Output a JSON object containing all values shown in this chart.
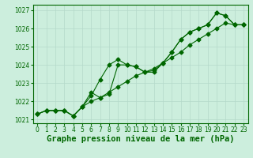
{
  "xlabel": "Graphe pression niveau de la mer (hPa)",
  "background_color": "#cceedd",
  "grid_color": "#b5d9ca",
  "line_color": "#006600",
  "x": [
    0,
    1,
    2,
    3,
    4,
    5,
    6,
    7,
    8,
    9,
    10,
    11,
    12,
    13,
    14,
    15,
    16,
    17,
    18,
    19,
    20,
    21,
    22,
    23
  ],
  "line1": [
    1021.3,
    1021.5,
    1021.5,
    1021.5,
    1021.2,
    1021.7,
    1022.0,
    1022.2,
    1022.5,
    1022.8,
    1023.1,
    1023.4,
    1023.6,
    1023.8,
    1024.1,
    1024.4,
    1024.7,
    1025.1,
    1025.4,
    1025.7,
    1026.0,
    1026.3,
    1026.2,
    1026.2
  ],
  "line2": [
    1021.3,
    1021.5,
    1021.5,
    1021.5,
    1021.2,
    1021.7,
    1022.3,
    1023.2,
    1024.0,
    1024.3,
    1024.0,
    1023.9,
    1023.6,
    1023.7,
    1024.1,
    1024.7,
    1025.4,
    1025.8,
    1026.0,
    1026.2,
    1026.85,
    1026.7,
    1026.2,
    1026.2
  ],
  "line3": [
    1021.3,
    1021.5,
    1021.5,
    1021.5,
    1021.2,
    1021.7,
    1022.5,
    1022.2,
    1022.4,
    1024.0,
    1024.0,
    1023.9,
    1023.6,
    1023.6,
    1024.1,
    1024.7,
    1025.4,
    1025.8,
    1026.0,
    1026.2,
    1026.85,
    1026.7,
    1026.2,
    1026.2
  ],
  "ylim": [
    1020.8,
    1027.3
  ],
  "yticks": [
    1021,
    1022,
    1023,
    1024,
    1025,
    1026,
    1027
  ],
  "xticks": [
    0,
    1,
    2,
    3,
    4,
    5,
    6,
    7,
    8,
    9,
    10,
    11,
    12,
    13,
    14,
    15,
    16,
    17,
    18,
    19,
    20,
    21,
    22,
    23
  ],
  "marker": "D",
  "markersize": 2.5,
  "linewidth": 0.8,
  "xlabel_fontsize": 7.5,
  "tick_fontsize": 5.5
}
